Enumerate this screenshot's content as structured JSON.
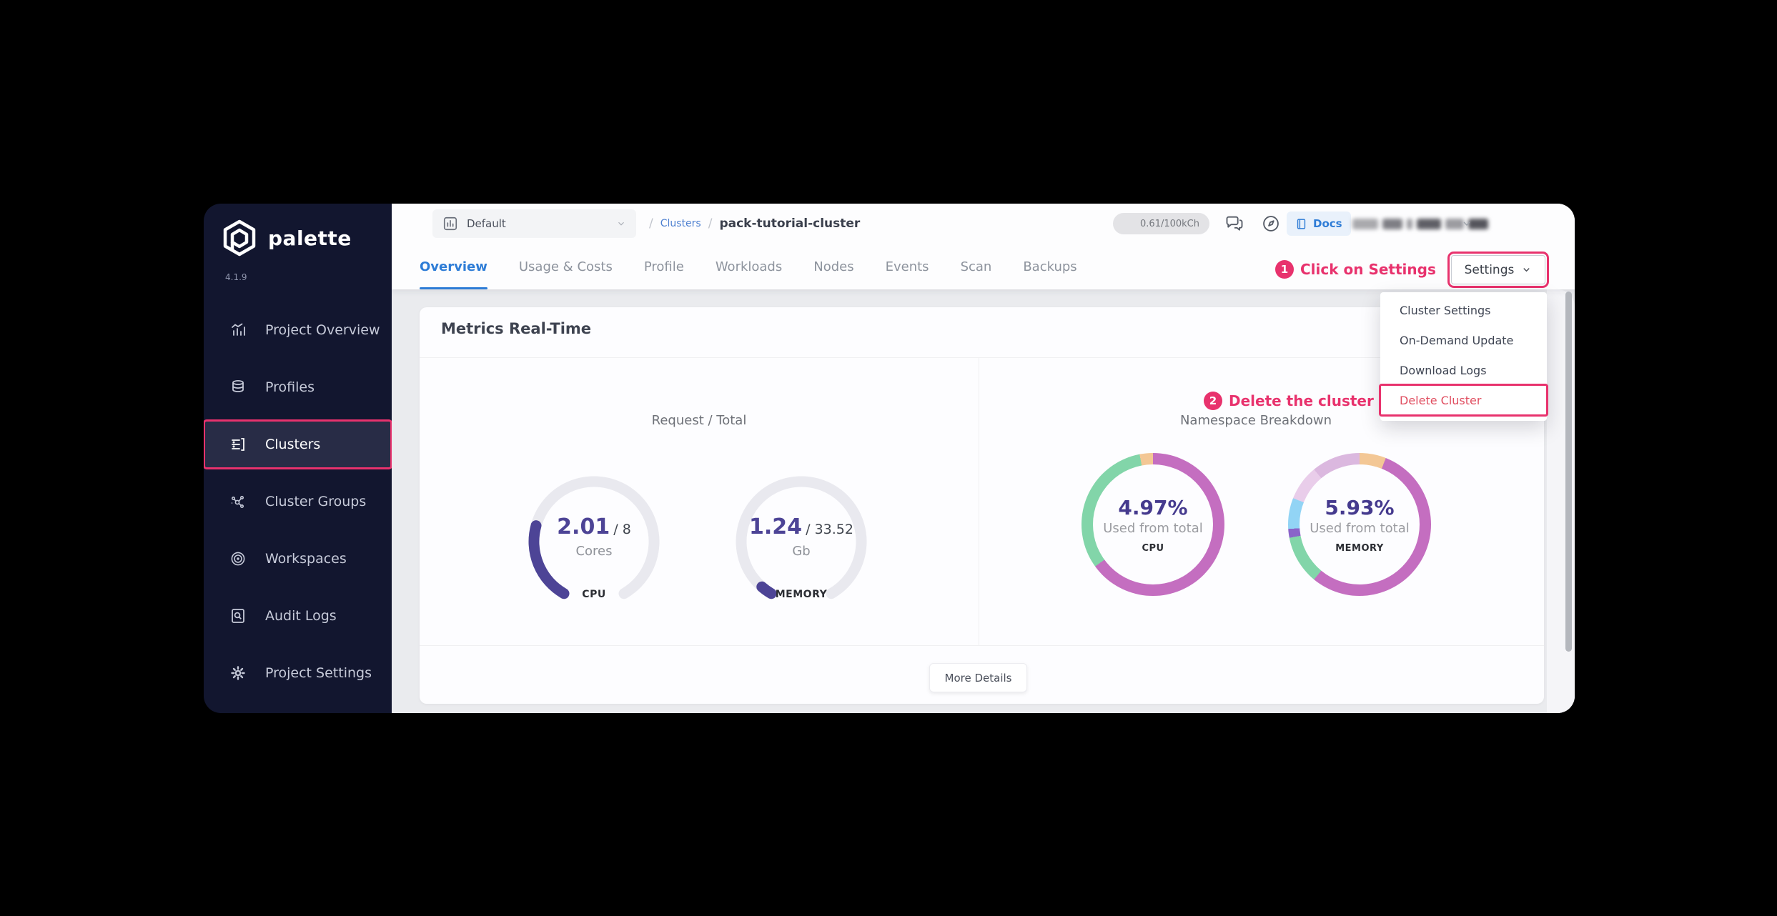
{
  "colors": {
    "accent_pink": "#e8326d",
    "link_blue": "#2d7cd6",
    "number_purple": "#453a8e",
    "gauge_purple": "#4d4496",
    "gauge_track": "#e9e9ef",
    "sidebar_bg": "#12162f",
    "danger_red": "#e04e60"
  },
  "sidebar": {
    "logo_text": "palette",
    "version": "4.1.9",
    "items": [
      {
        "label": "Project Overview",
        "icon": "project-overview"
      },
      {
        "label": "Profiles",
        "icon": "profiles"
      },
      {
        "label": "Clusters",
        "icon": "clusters",
        "active": true,
        "highlighted": true
      },
      {
        "label": "Cluster Groups",
        "icon": "cluster-groups"
      },
      {
        "label": "Workspaces",
        "icon": "workspaces"
      },
      {
        "label": "Audit Logs",
        "icon": "audit-logs"
      },
      {
        "label": "Project Settings",
        "icon": "project-settings"
      }
    ]
  },
  "header": {
    "project_selector": {
      "label": "Default",
      "icon": "bar-chart"
    },
    "breadcrumb": {
      "sep": "/",
      "link": "Clusters",
      "current": "pack-tutorial-cluster"
    },
    "usage_pill": "0.61/100kCh",
    "docs_label": "Docs"
  },
  "tabs": {
    "active": "Overview",
    "items": [
      {
        "label": "Overview"
      },
      {
        "label": "Usage & Costs"
      },
      {
        "label": "Profile"
      },
      {
        "label": "Workloads"
      },
      {
        "label": "Nodes"
      },
      {
        "label": "Events"
      },
      {
        "label": "Scan"
      },
      {
        "label": "Backups"
      }
    ]
  },
  "settings_menu": {
    "button_label": "Settings",
    "items": [
      {
        "label": "Cluster Settings"
      },
      {
        "label": "On-Demand Update"
      },
      {
        "label": "Download Logs"
      },
      {
        "label": "Delete Cluster",
        "danger": true,
        "highlighted": true
      }
    ]
  },
  "annotations": [
    {
      "num": "1",
      "text": "Click on Settings"
    },
    {
      "num": "2",
      "text": "Delete the cluster"
    }
  ],
  "metrics": {
    "title": "Metrics Real-Time",
    "left_section": {
      "label": "Request / Total"
    },
    "right_section": {
      "label": "Namespace Breakdown"
    },
    "gauges": [
      {
        "label": "CPU",
        "value": "2.01",
        "total_display": "/ 8",
        "unit": "Cores",
        "used": 2.01,
        "max": 8,
        "color": "#4d4496",
        "track": "#e9e9ef"
      },
      {
        "label": "MEMORY",
        "value": "1.24",
        "total_display": "/ 33.52",
        "unit": "Gb",
        "used": 1.24,
        "max": 33.52,
        "color": "#4d4496",
        "track": "#e9e9ef"
      }
    ],
    "donuts": [
      {
        "label": "CPU",
        "percent": "4.97%",
        "caption": "Used from total",
        "segments": [
          {
            "name": "used",
            "color": "#c46ec0",
            "value": 65
          },
          {
            "name": "free",
            "color": "#82d5a9",
            "value": 32
          },
          {
            "name": "other",
            "color": "#f3c795",
            "value": 3
          }
        ]
      },
      {
        "label": "MEMORY",
        "percent": "5.93%",
        "caption": "Used from total",
        "segments": [
          {
            "name": "seg1",
            "color": "#f3c795",
            "value": 6
          },
          {
            "name": "seg2",
            "color": "#c46ec0",
            "value": 55
          },
          {
            "name": "seg3",
            "color": "#82d5a9",
            "value": 11
          },
          {
            "name": "seg4",
            "color": "#8a63c9",
            "value": 2
          },
          {
            "name": "seg5",
            "color": "#92d4f5",
            "value": 7
          },
          {
            "name": "seg6",
            "color": "#e9cdea",
            "value": 8
          },
          {
            "name": "seg7",
            "color": "#dbb8df",
            "value": 11
          }
        ]
      }
    ],
    "more_details_label": "More Details"
  }
}
